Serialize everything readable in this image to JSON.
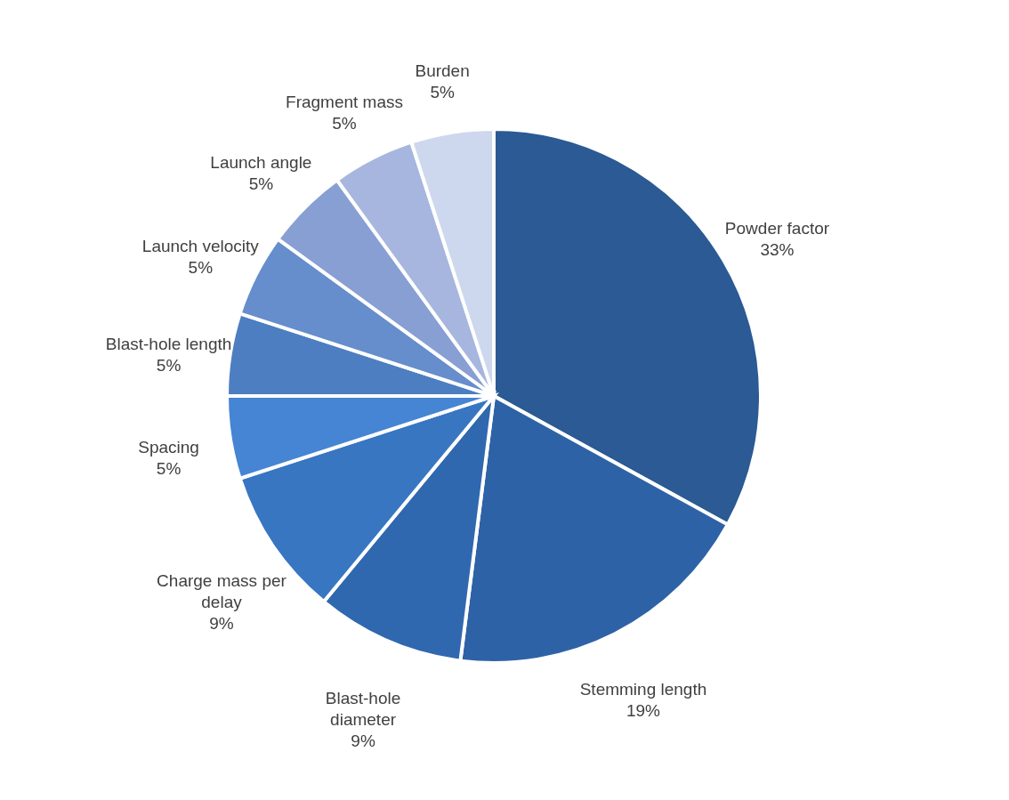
{
  "chart_data": {
    "type": "pie",
    "categories": [
      "Powder factor",
      "Stemming length",
      "Blast-hole diameter",
      "Charge mass per delay",
      "Spacing",
      "Blast-hole length",
      "Launch velocity",
      "Launch angle",
      "Fragment mass",
      "Burden"
    ],
    "values": [
      33,
      19,
      9,
      9,
      5,
      5,
      5,
      5,
      5,
      5
    ],
    "value_labels": [
      "33%",
      "19%",
      "9%",
      "9%",
      "5%",
      "5%",
      "5%",
      "5%",
      "5%",
      "5%"
    ],
    "colors": [
      "#2b5a94",
      "#2e62a6",
      "#3068b0",
      "#3876c2",
      "#4684d4",
      "#4d7ec2",
      "#668dcc",
      "#889fd4",
      "#a6b6de",
      "#cdd8ee"
    ]
  }
}
